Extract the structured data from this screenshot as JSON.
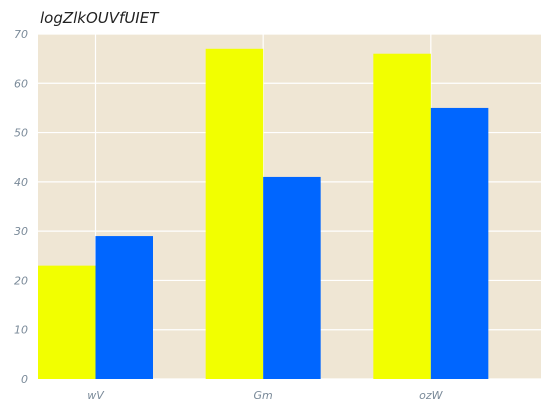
{
  "chart_data": {
    "type": "bar",
    "title": "logZlkOUVfUIET",
    "xlabel": "",
    "ylabel": "",
    "categories": [
      "wV",
      "Gm",
      "ozW"
    ],
    "series": [
      {
        "values": [
          23,
          67,
          66
        ],
        "color": "#f2ff00"
      },
      {
        "values": [
          29,
          41,
          55
        ],
        "color": "#0066ff"
      }
    ],
    "ylim": [
      0,
      70
    ],
    "yticks": [
      0,
      10,
      20,
      30,
      40,
      50,
      60,
      70
    ],
    "grid": true,
    "background": "#efe6d4"
  }
}
